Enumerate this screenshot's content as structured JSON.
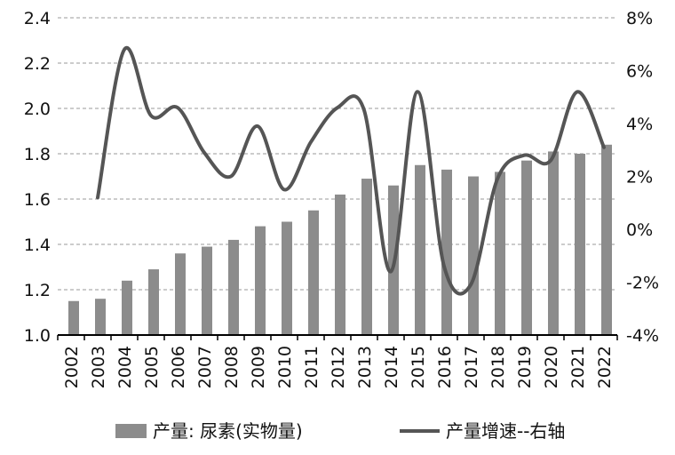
{
  "chart_data": {
    "type": "bar",
    "categories": [
      "2002",
      "2003",
      "2004",
      "2005",
      "2006",
      "2007",
      "2008",
      "2009",
      "2010",
      "2011",
      "2012",
      "2013",
      "2014",
      "2015",
      "2016",
      "2017",
      "2018",
      "2019",
      "2020",
      "2021",
      "2022"
    ],
    "series": [
      {
        "name": "产量: 尿素(实物量)",
        "type": "bar",
        "axis": "left",
        "color": "#8c8c8c",
        "values": [
          1.15,
          1.16,
          1.24,
          1.29,
          1.36,
          1.39,
          1.42,
          1.48,
          1.5,
          1.55,
          1.62,
          1.69,
          1.66,
          1.75,
          1.73,
          1.7,
          1.72,
          1.77,
          1.81,
          1.8,
          1.84
        ]
      },
      {
        "name": "产量增速--右轴",
        "type": "line",
        "axis": "right",
        "color": "#555555",
        "values": [
          null,
          1.2,
          6.8,
          4.3,
          4.6,
          2.9,
          2.0,
          3.9,
          1.5,
          3.3,
          4.6,
          4.5,
          -1.6,
          5.2,
          -1.4,
          -2.1,
          1.9,
          2.8,
          2.6,
          5.2,
          3.1
        ]
      }
    ],
    "y_left": {
      "ylim": [
        1.0,
        2.4
      ],
      "ticks": [
        "1.0",
        "1.2",
        "1.4",
        "1.6",
        "1.8",
        "2.0",
        "2.2",
        "2.4"
      ]
    },
    "y_right": {
      "ylim": [
        -4,
        8
      ],
      "ticks": [
        "-4%",
        "-2%",
        "0%",
        "2%",
        "4%",
        "6%",
        "8%"
      ]
    },
    "grid": true,
    "legend_position": "bottom"
  }
}
